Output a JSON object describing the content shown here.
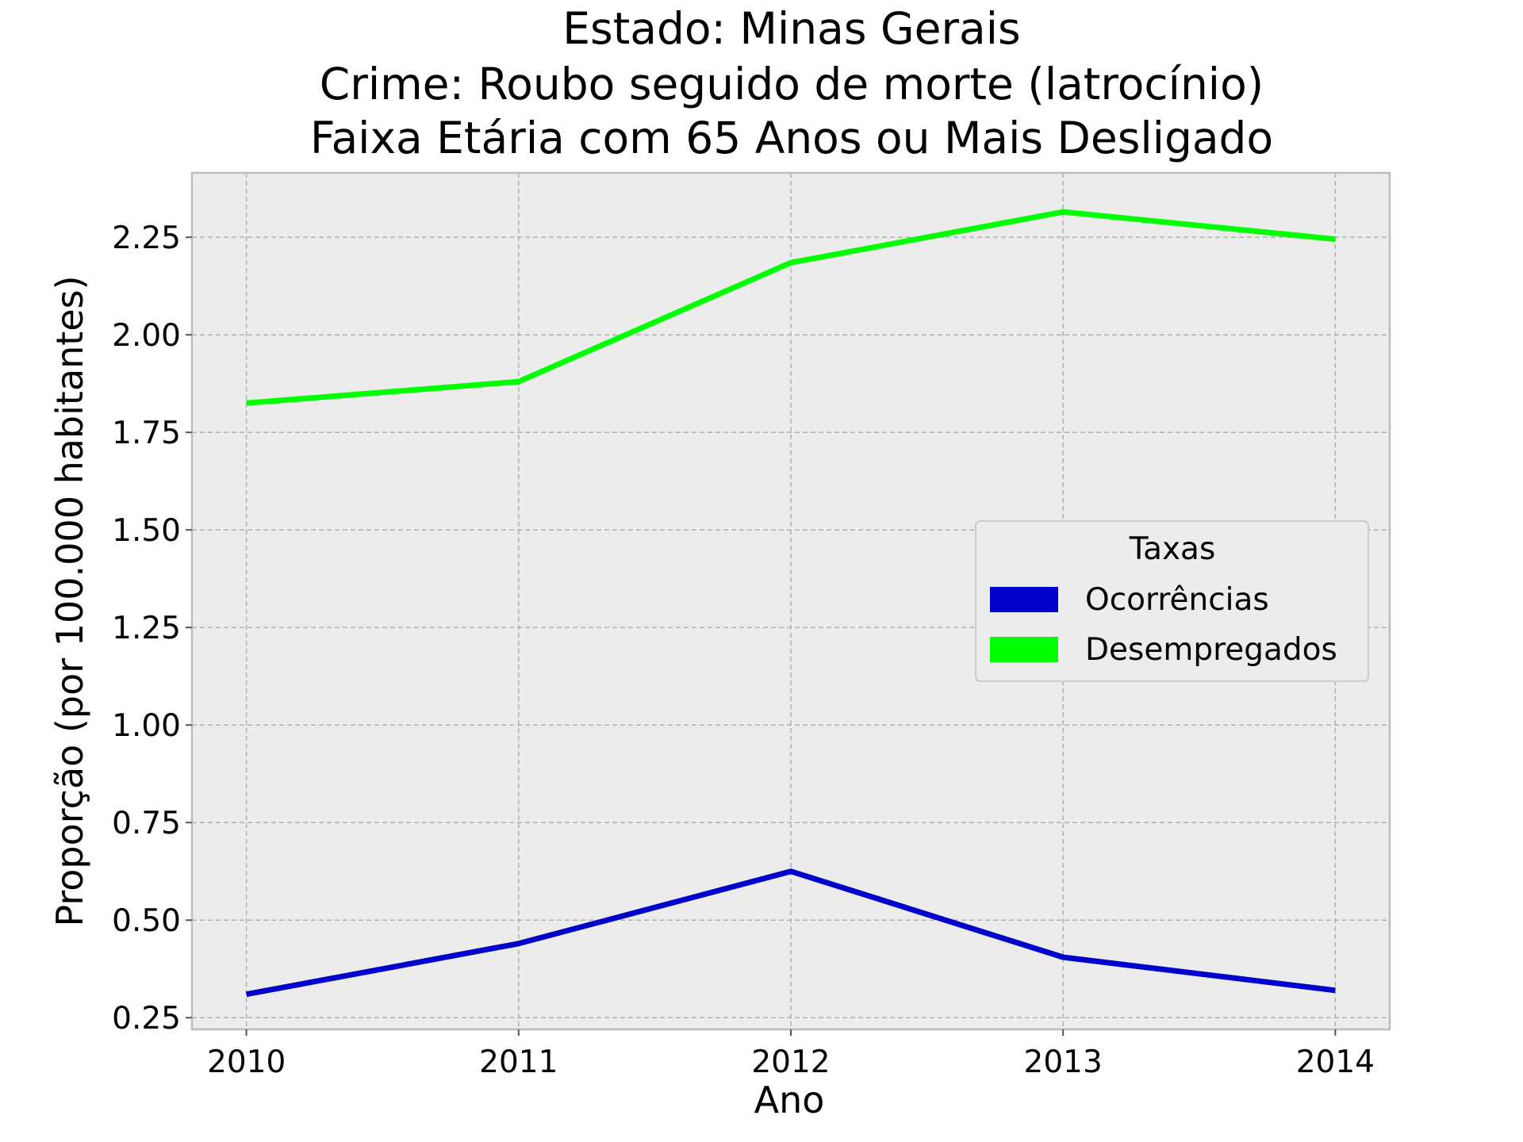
{
  "chart_data": {
    "type": "line",
    "title_lines": [
      "Estado: Minas Gerais",
      "Crime: Roubo seguido de morte (latrocínio)",
      "Faixa Etária com 65 Anos ou Mais   Desligado"
    ],
    "xlabel": "Ano",
    "ylabel": "Proporção (por 100.000 habitantes)",
    "x": [
      2010,
      2011,
      2012,
      2013,
      2014
    ],
    "x_tick_labels": [
      "2010",
      "2011",
      "2012",
      "2013",
      "2014"
    ],
    "y_ticks": [
      0.25,
      0.5,
      0.75,
      1.0,
      1.25,
      1.5,
      1.75,
      2.0,
      2.25
    ],
    "y_tick_labels": [
      "0.25",
      "0.50",
      "0.75",
      "1.00",
      "1.25",
      "1.50",
      "1.75",
      "2.00",
      "2.25"
    ],
    "xlim": [
      2009.8,
      2014.2
    ],
    "ylim": [
      0.22,
      2.415
    ],
    "grid": true,
    "legend": {
      "title": "Taxas",
      "placement": "center-right"
    },
    "series": [
      {
        "name": "Ocorrências",
        "color": "#0000cc",
        "values": [
          0.31,
          0.44,
          0.625,
          0.405,
          0.32
        ]
      },
      {
        "name": "Desempregados",
        "color": "#00ff00",
        "values": [
          1.825,
          1.88,
          2.185,
          2.315,
          2.245
        ]
      }
    ],
    "background_color": "#ececec",
    "frame_color": "#bdbdbd"
  }
}
